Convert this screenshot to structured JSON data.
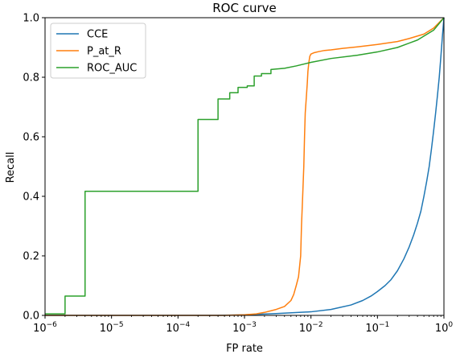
{
  "chart_data": {
    "type": "line",
    "title": "ROC curve",
    "xlabel": "FP rate",
    "ylabel": "Recall",
    "xscale": "log",
    "xlim": [
      1e-06,
      1
    ],
    "ylim": [
      0,
      1.0
    ],
    "grid": false,
    "legend_position": "top-left",
    "x_ticks": [
      {
        "value": 1e-06,
        "base": "10",
        "exp": "−6"
      },
      {
        "value": 1e-05,
        "base": "10",
        "exp": "−5"
      },
      {
        "value": 0.0001,
        "base": "10",
        "exp": "−4"
      },
      {
        "value": 0.001,
        "base": "10",
        "exp": "−3"
      },
      {
        "value": 0.01,
        "base": "10",
        "exp": "−2"
      },
      {
        "value": 0.1,
        "base": "10",
        "exp": "−1"
      },
      {
        "value": 1,
        "base": "10",
        "exp": "0"
      }
    ],
    "y_ticks": [
      "0.0",
      "0.2",
      "0.4",
      "0.6",
      "0.8",
      "1.0"
    ],
    "series": [
      {
        "name": "CCE",
        "color": "#1f77b4",
        "x": [
          1e-06,
          0.0004,
          0.001,
          0.003,
          0.01,
          0.02,
          0.04,
          0.06,
          0.08,
          0.1,
          0.13,
          0.16,
          0.2,
          0.25,
          0.3,
          0.35,
          0.4,
          0.45,
          0.5,
          0.55,
          0.6,
          0.65,
          0.7,
          0.75,
          0.8,
          0.85,
          0.9,
          0.95,
          1.0
        ],
        "y": [
          0.0,
          0.0,
          0.002,
          0.006,
          0.012,
          0.02,
          0.035,
          0.05,
          0.065,
          0.08,
          0.1,
          0.12,
          0.15,
          0.19,
          0.23,
          0.27,
          0.31,
          0.35,
          0.4,
          0.45,
          0.5,
          0.56,
          0.62,
          0.68,
          0.74,
          0.8,
          0.87,
          0.94,
          1.0
        ]
      },
      {
        "name": "P_at_R",
        "color": "#ff7f0e",
        "x": [
          1e-06,
          0.0005,
          0.001,
          0.0015,
          0.002,
          0.003,
          0.004,
          0.005,
          0.0055,
          0.006,
          0.0065,
          0.007,
          0.0072,
          0.0075,
          0.0078,
          0.008,
          0.0082,
          0.0085,
          0.0088,
          0.009,
          0.0093,
          0.0096,
          0.01,
          0.011,
          0.013,
          0.016,
          0.02,
          0.03,
          0.05,
          0.1,
          0.2,
          0.3,
          0.5,
          0.7,
          1.0
        ],
        "y": [
          0.0,
          0.0,
          0.002,
          0.005,
          0.01,
          0.02,
          0.03,
          0.05,
          0.07,
          0.1,
          0.13,
          0.2,
          0.3,
          0.4,
          0.5,
          0.6,
          0.68,
          0.73,
          0.78,
          0.82,
          0.85,
          0.87,
          0.878,
          0.882,
          0.886,
          0.89,
          0.892,
          0.897,
          0.902,
          0.91,
          0.92,
          0.93,
          0.945,
          0.965,
          1.0
        ]
      },
      {
        "name": "ROC_AUC",
        "color": "#2ca02c",
        "x": [
          1e-06,
          2e-06,
          2e-06,
          4e-06,
          4e-06,
          0.0002,
          0.0002,
          0.0004,
          0.0004,
          0.0006,
          0.0006,
          0.0008,
          0.0008,
          0.0011,
          0.0011,
          0.0014,
          0.0014,
          0.0018,
          0.0018,
          0.0025,
          0.0025,
          0.004,
          0.006,
          0.01,
          0.02,
          0.05,
          0.1,
          0.2,
          0.4,
          0.7,
          1.0
        ],
        "y": [
          0.005,
          0.005,
          0.065,
          0.065,
          0.417,
          0.417,
          0.658,
          0.658,
          0.727,
          0.727,
          0.748,
          0.748,
          0.766,
          0.766,
          0.771,
          0.771,
          0.804,
          0.804,
          0.812,
          0.812,
          0.826,
          0.83,
          0.838,
          0.85,
          0.863,
          0.874,
          0.885,
          0.9,
          0.925,
          0.958,
          1.0
        ]
      }
    ]
  }
}
